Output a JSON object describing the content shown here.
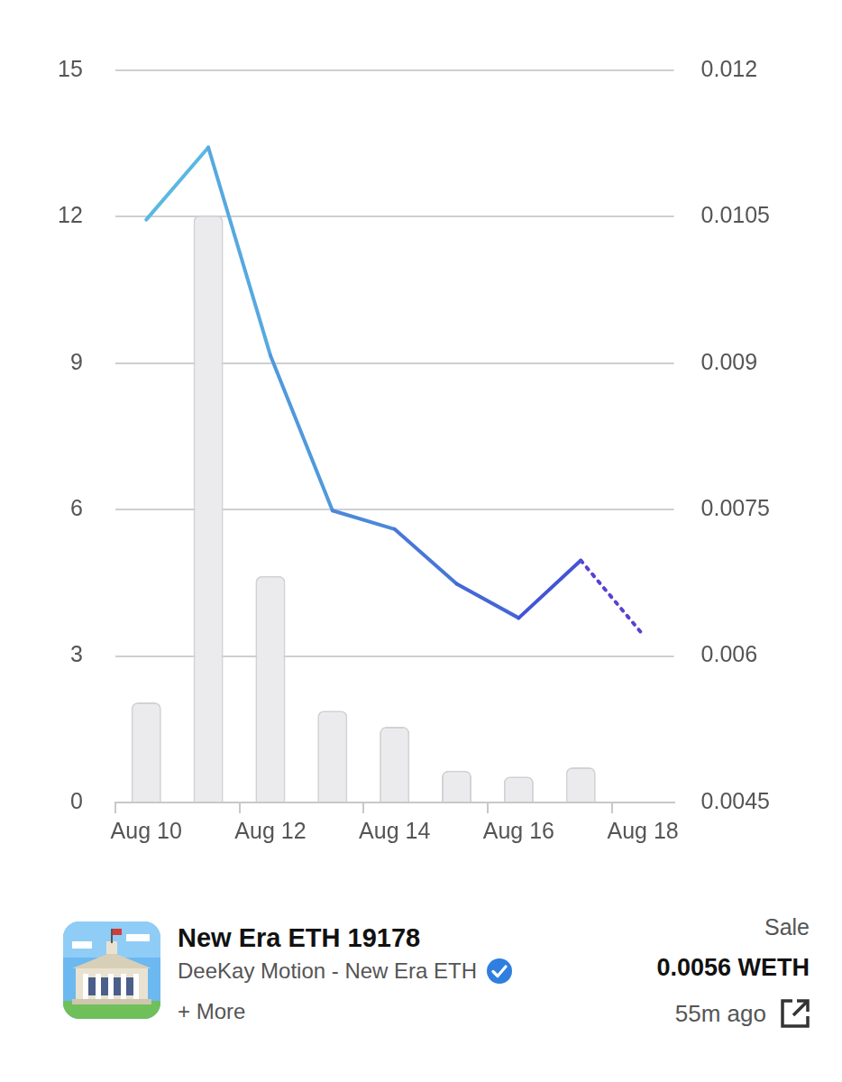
{
  "chart_data": {
    "type": "bar",
    "categories": [
      "Aug 10",
      null,
      "Aug 12",
      null,
      "Aug 14",
      null,
      "Aug 16",
      null,
      "Aug 18"
    ],
    "series": [
      {
        "type": "bar",
        "color": "#ebebed",
        "values": [
          2.05,
          12.03,
          4.64,
          1.88,
          1.55,
          0.65,
          0.53,
          0.72,
          null
        ]
      },
      {
        "type": "line",
        "axis": "y2",
        "colors": [
          "#5ab8e2",
          "#56a9e0",
          "#5199dd",
          "#4c88da",
          "#4877d8",
          "#4566d6",
          "#4355d4",
          "#5347d3",
          "#5a3fd3"
        ],
        "values": [
          0.01047,
          0.01121,
          0.00908,
          0.00749,
          0.0073,
          0.00674,
          0.00639,
          0.00698,
          null
        ]
      },
      {
        "type": "line",
        "axis": "y2",
        "line_style": "dotted",
        "color": "#5a3fd3",
        "values": [
          null,
          null,
          null,
          null,
          null,
          null,
          null,
          0.00698,
          0.00622
        ]
      }
    ],
    "ylim": [
      0,
      15
    ],
    "yticks": [
      0,
      3,
      6,
      9,
      12,
      15
    ],
    "y2lim": [
      0.0045,
      0.012
    ],
    "y2ticks": [
      0.0045,
      0.006,
      0.0075,
      0.009,
      0.0105,
      0.012
    ],
    "grid": true
  },
  "card": {
    "title": "New Era ETH 19178",
    "collection": "DeeKay Motion - New Era ETH",
    "more": "+ More",
    "event": "Sale",
    "price": "0.0056 WETH",
    "time": "55m ago"
  }
}
